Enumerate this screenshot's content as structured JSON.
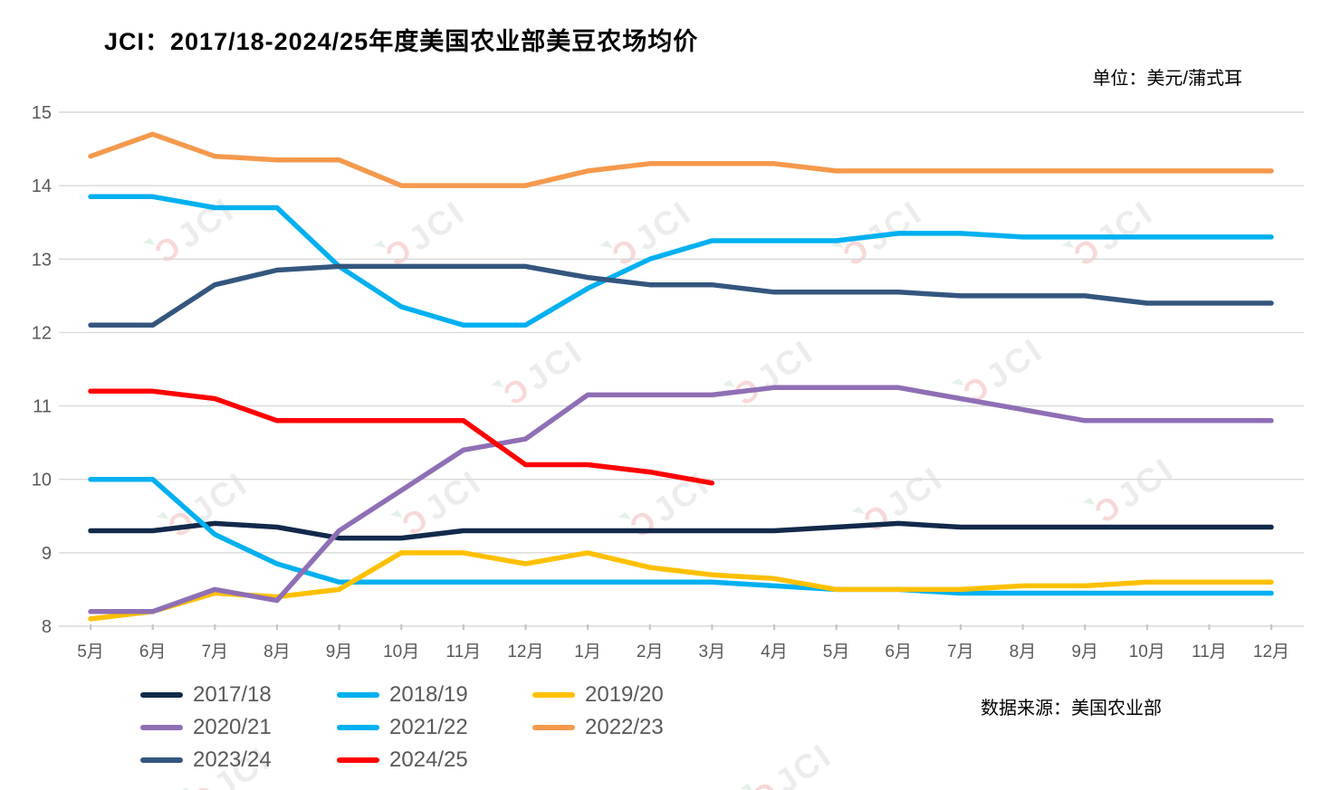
{
  "title": "JCI：2017/18-2024/25年度美国农业部美豆农场均价",
  "unit_label": "单位：美元/蒲式耳",
  "source_label": "数据来源：美国农业部",
  "watermark": {
    "text": "JCI"
  },
  "chart_data": {
    "type": "line",
    "title": "JCI：2017/18-2024/25年度美国农业部美豆农场均价",
    "ylabel": "美元/蒲式耳",
    "xlabel": "",
    "ylim": [
      8,
      15
    ],
    "yticks": [
      8,
      9,
      10,
      11,
      12,
      13,
      14,
      15
    ],
    "grid": true,
    "legend_position": "bottom-left",
    "categories": [
      "5月",
      "6月",
      "7月",
      "8月",
      "9月",
      "10月",
      "11月",
      "12月",
      "1月",
      "2月",
      "3月",
      "4月",
      "5月",
      "6月",
      "7月",
      "8月",
      "9月",
      "10月",
      "11月",
      "12月"
    ],
    "series": [
      {
        "name": "2017/18",
        "color": "#12294B",
        "values": [
          9.3,
          9.3,
          9.4,
          9.35,
          9.2,
          9.2,
          9.3,
          9.3,
          9.3,
          9.3,
          9.3,
          9.3,
          9.35,
          9.4,
          9.35,
          9.35,
          9.35,
          9.35,
          9.35,
          9.35
        ]
      },
      {
        "name": "2018/19",
        "color": "#00B0F0",
        "values": [
          10.0,
          10.0,
          9.25,
          8.85,
          8.6,
          8.6,
          8.6,
          8.6,
          8.6,
          8.6,
          8.6,
          8.55,
          8.5,
          8.5,
          8.45,
          8.45,
          8.45,
          8.45,
          8.45,
          8.45
        ]
      },
      {
        "name": "2019/20",
        "color": "#FFC000",
        "values": [
          8.1,
          8.2,
          8.45,
          8.4,
          8.5,
          9.0,
          9.0,
          8.85,
          9.0,
          8.8,
          8.7,
          8.65,
          8.5,
          8.5,
          8.5,
          8.55,
          8.55,
          8.6,
          8.6,
          8.6
        ]
      },
      {
        "name": "2020/21",
        "color": "#8F6FB5",
        "values": [
          8.2,
          8.2,
          8.5,
          8.35,
          9.3,
          9.85,
          10.4,
          10.55,
          11.15,
          11.15,
          11.15,
          11.25,
          11.25,
          11.25,
          11.1,
          10.95,
          10.8,
          10.8,
          10.8,
          10.8
        ]
      },
      {
        "name": "2021/22",
        "color": "#00B0F0",
        "values": [
          13.85,
          13.85,
          13.7,
          13.7,
          12.9,
          12.35,
          12.1,
          12.1,
          12.6,
          13.0,
          13.25,
          13.25,
          13.25,
          13.35,
          13.35,
          13.3,
          13.3,
          13.3,
          13.3,
          13.3
        ]
      },
      {
        "name": "2022/23",
        "color": "#F5994D",
        "values": [
          14.4,
          14.7,
          14.4,
          14.35,
          14.35,
          14.0,
          14.0,
          14.0,
          14.2,
          14.3,
          14.3,
          14.3,
          14.2,
          14.2,
          14.2,
          14.2,
          14.2,
          14.2,
          14.2,
          14.2
        ]
      },
      {
        "name": "2023/24",
        "color": "#34567E",
        "values": [
          12.1,
          12.1,
          12.65,
          12.85,
          12.9,
          12.9,
          12.9,
          12.9,
          12.75,
          12.65,
          12.65,
          12.55,
          12.55,
          12.55,
          12.5,
          12.5,
          12.5,
          12.4,
          12.4,
          12.4
        ]
      },
      {
        "name": "2024/25",
        "color": "#FF0000",
        "values": [
          11.2,
          11.2,
          11.1,
          10.8,
          10.8,
          10.8,
          10.8,
          10.2,
          10.2,
          10.1,
          9.95
        ]
      }
    ]
  }
}
